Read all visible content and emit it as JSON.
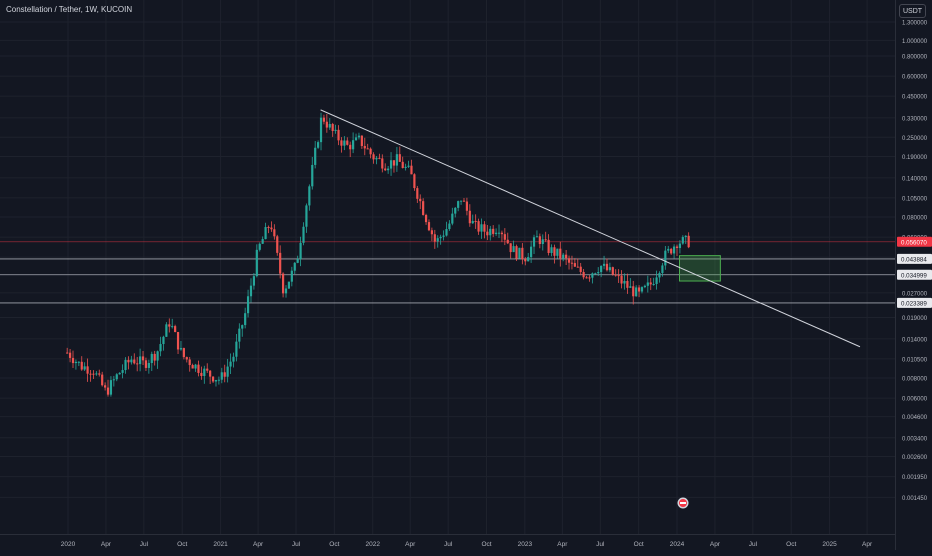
{
  "header": {
    "symbol_title": "Constellation / Tether, 1W, KUCOIN",
    "currency": "USDT"
  },
  "price_axis": {
    "ticks": [
      "1.300000",
      "1.000000",
      "0.800000",
      "0.600000",
      "0.450000",
      "0.330000",
      "0.250000",
      "0.190000",
      "0.140000",
      "0.105000",
      "0.080000",
      "0.060000",
      "0.045000",
      "0.035000",
      "0.027000",
      "0.019000",
      "0.014000",
      "0.010500",
      "0.008000",
      "0.006000",
      "0.004600",
      "0.003400",
      "0.002600",
      "0.001950",
      "0.001450"
    ],
    "current_price": "0.056070",
    "level_labels": [
      "0.043884",
      "0.034999",
      "0.023389"
    ]
  },
  "time_axis": {
    "labels": [
      "2020",
      "Apr",
      "Jul",
      "Oct",
      "2021",
      "Apr",
      "Jul",
      "Oct",
      "2022",
      "Apr",
      "Jul",
      "Oct",
      "2023",
      "Apr",
      "Jul",
      "Oct",
      "2024",
      "Apr",
      "Jul",
      "Oct",
      "2025",
      "Apr"
    ]
  },
  "colors": {
    "up": "#26a69a",
    "down": "#ef5350",
    "background": "#131722",
    "trendline": "#d1d4dc",
    "zone": "#4caf50",
    "current_price": "#f23645"
  },
  "icons": {
    "flag": "event-flag-icon"
  },
  "chart_data": {
    "type": "candlestick",
    "title": "Constellation / Tether, 1W, KUCOIN",
    "scale": "log",
    "ylim": [
      0.0013,
      1.3
    ],
    "xlim": [
      "2019-12-01",
      "2025-06-01"
    ],
    "close_series": {
      "x": [
        "2020-01-01",
        "2020-02-01",
        "2020-03-01",
        "2020-04-01",
        "2020-05-01",
        "2020-06-01",
        "2020-07-01",
        "2020-08-01",
        "2020-09-01",
        "2020-10-01",
        "2020-11-01",
        "2020-12-01",
        "2021-01-01",
        "2021-02-01",
        "2021-03-01",
        "2021-04-01",
        "2021-05-01",
        "2021-06-01",
        "2021-07-01",
        "2021-08-01",
        "2021-09-01",
        "2021-10-01",
        "2021-11-01",
        "2021-12-01",
        "2022-01-01",
        "2022-02-01",
        "2022-03-01",
        "2022-04-01",
        "2022-05-01",
        "2022-06-01",
        "2022-07-01",
        "2022-08-01",
        "2022-09-01",
        "2022-10-01",
        "2022-11-01",
        "2022-12-01",
        "2023-01-01",
        "2023-02-01",
        "2023-03-01",
        "2023-04-01",
        "2023-05-01",
        "2023-06-01",
        "2023-07-01",
        "2023-08-01",
        "2023-09-01",
        "2023-10-01",
        "2023-11-01",
        "2023-12-01",
        "2024-01-01"
      ],
      "y": [
        0.0115,
        0.0095,
        0.009,
        0.0065,
        0.0085,
        0.0105,
        0.0098,
        0.0115,
        0.018,
        0.011,
        0.0095,
        0.0085,
        0.0078,
        0.011,
        0.02,
        0.05,
        0.075,
        0.028,
        0.04,
        0.12,
        0.34,
        0.26,
        0.22,
        0.24,
        0.19,
        0.17,
        0.18,
        0.15,
        0.09,
        0.055,
        0.07,
        0.105,
        0.07,
        0.065,
        0.07,
        0.05,
        0.045,
        0.06,
        0.05,
        0.045,
        0.038,
        0.035,
        0.04,
        0.035,
        0.03,
        0.026,
        0.031,
        0.045,
        0.0561
      ]
    },
    "trendline": {
      "start": [
        "2021-08-29",
        0.37
      ],
      "end": [
        "2025-03-15",
        0.0125
      ]
    },
    "horizontal_levels": [
      0.05607,
      0.043884,
      0.034999,
      0.023389
    ],
    "zone": {
      "x": [
        "2024-01-07",
        "2024-04-14"
      ],
      "y": [
        0.032,
        0.046
      ]
    }
  }
}
